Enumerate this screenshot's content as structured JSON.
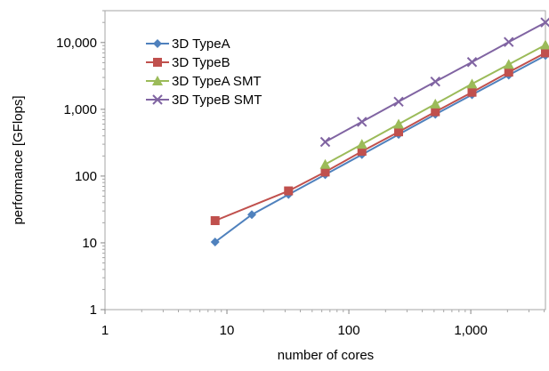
{
  "chart_data": {
    "type": "line",
    "xlabel": "number of cores",
    "ylabel": "performance [GFlops]",
    "x_scale": "log",
    "y_scale": "log",
    "xlim": [
      1,
      4096
    ],
    "ylim": [
      1,
      30000
    ],
    "x_ticks": [
      {
        "value": 1,
        "label": "1"
      },
      {
        "value": 10,
        "label": "10"
      },
      {
        "value": 100,
        "label": "100"
      },
      {
        "value": 1000,
        "label": "1,000"
      }
    ],
    "y_ticks": [
      {
        "value": 1,
        "label": "1"
      },
      {
        "value": 10,
        "label": "10"
      },
      {
        "value": 100,
        "label": "100"
      },
      {
        "value": 1000,
        "label": "1,000"
      },
      {
        "value": 10000,
        "label": "10,000"
      }
    ],
    "grid": false,
    "legend_position": "top-left",
    "series": [
      {
        "name": "3D TypeA",
        "color": "#4f81bd",
        "marker": "diamond",
        "x": [
          8,
          16,
          32,
          64,
          128,
          256,
          512,
          1024,
          2048,
          4096
        ],
        "y": [
          10.3,
          26.5,
          53,
          105,
          210,
          420,
          840,
          1650,
          3250,
          6400
        ]
      },
      {
        "name": "3D TypeB",
        "color": "#c0504d",
        "marker": "square",
        "x": [
          8,
          32,
          64,
          128,
          256,
          512,
          1024,
          2048,
          4096
        ],
        "y": [
          21.5,
          60,
          115,
          235,
          460,
          920,
          1800,
          3600,
          7000
        ]
      },
      {
        "name": "3D TypeA SMT",
        "color": "#9bbb59",
        "marker": "triangle",
        "x": [
          64,
          128,
          256,
          512,
          1024,
          2048,
          4096
        ],
        "y": [
          150,
          300,
          600,
          1200,
          2400,
          4700,
          9200
        ]
      },
      {
        "name": "3D TypeB SMT",
        "color": "#8064a2",
        "marker": "x",
        "x": [
          64,
          128,
          256,
          512,
          1024,
          2048,
          4096
        ],
        "y": [
          325,
          650,
          1300,
          2600,
          5100,
          10200,
          20000
        ]
      }
    ]
  }
}
